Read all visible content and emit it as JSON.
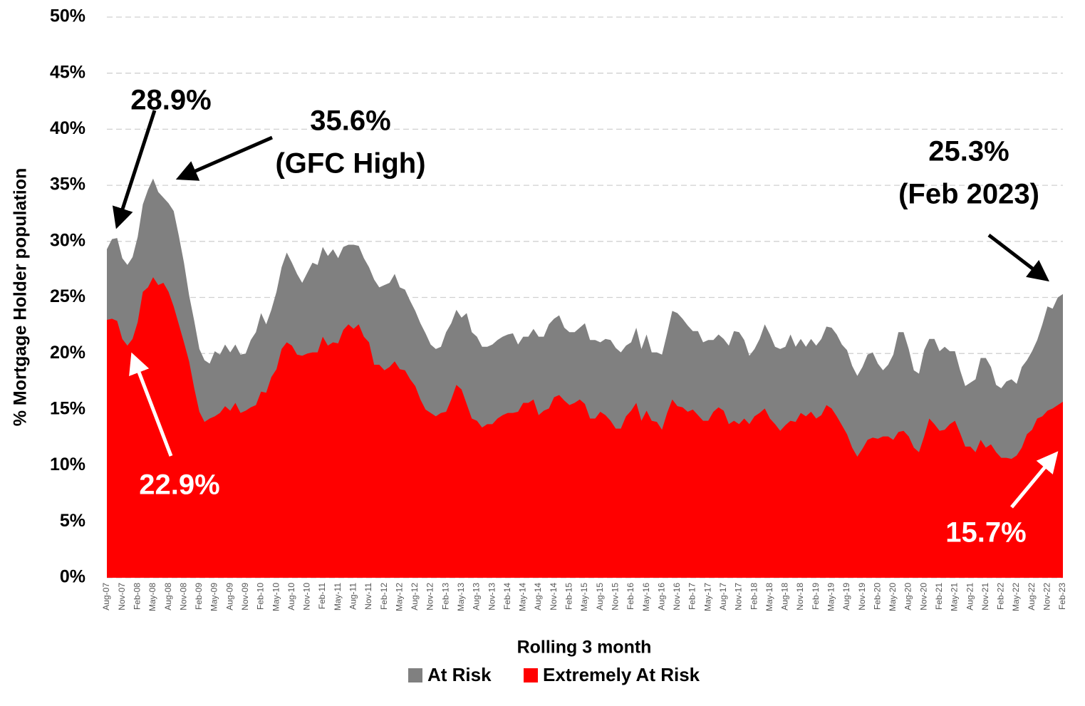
{
  "chart_data": {
    "type": "area",
    "xlabel": "Rolling 3 month",
    "ylabel": "% Mortgage Holder population",
    "ylim": [
      0,
      50
    ],
    "yticks": [
      {
        "value": 0,
        "label": "0%"
      },
      {
        "value": 5,
        "label": "5%"
      },
      {
        "value": 10,
        "label": "10%"
      },
      {
        "value": 15,
        "label": "15%"
      },
      {
        "value": 20,
        "label": "20%"
      },
      {
        "value": 25,
        "label": "25%"
      },
      {
        "value": 30,
        "label": "30%"
      },
      {
        "value": 35,
        "label": "35%"
      },
      {
        "value": 40,
        "label": "40%"
      },
      {
        "value": 45,
        "label": "45%"
      },
      {
        "value": 50,
        "label": "50%"
      }
    ],
    "grid": true,
    "legend": "bottom",
    "categories": [
      "Aug-07",
      null,
      null,
      "Nov-07",
      null,
      null,
      "Feb-08",
      null,
      null,
      "May-08",
      null,
      null,
      "Aug-08",
      null,
      null,
      "Nov-08",
      null,
      null,
      "Feb-09",
      null,
      null,
      "May-09",
      null,
      null,
      "Aug-09",
      null,
      null,
      "Nov-09",
      null,
      null,
      "Feb-10",
      null,
      null,
      "May-10",
      null,
      null,
      "Aug-10",
      null,
      null,
      "Nov-10",
      null,
      null,
      "Feb-11",
      null,
      null,
      "May-11",
      null,
      null,
      "Aug-11",
      null,
      null,
      "Nov-11",
      null,
      null,
      "Feb-12",
      null,
      null,
      "May-12",
      null,
      null,
      "Aug-12",
      null,
      null,
      "Nov-12",
      null,
      null,
      "Feb-13",
      null,
      null,
      "May-13",
      null,
      null,
      "Aug-13",
      null,
      null,
      "Nov-13",
      null,
      null,
      "Feb-14",
      null,
      null,
      "May-14",
      null,
      null,
      "Aug-14",
      null,
      null,
      "Nov-14",
      null,
      null,
      "Feb-15",
      null,
      null,
      "May-15",
      null,
      null,
      "Aug-15",
      null,
      null,
      "Nov-15",
      null,
      null,
      "Feb-16",
      null,
      null,
      "May-16",
      null,
      null,
      "Aug-16",
      null,
      null,
      "Nov-16",
      null,
      null,
      "Feb-17",
      null,
      null,
      "May-17",
      null,
      null,
      "Aug-17",
      null,
      null,
      "Nov-17",
      null,
      null,
      "Feb-18",
      null,
      null,
      "May-18",
      null,
      null,
      "Aug-18",
      null,
      null,
      "Nov-18",
      null,
      null,
      "Feb-19",
      null,
      null,
      "May-19",
      null,
      null,
      "Aug-19",
      null,
      null,
      "Nov-19",
      null,
      null,
      "Feb-20",
      null,
      null,
      "May-20",
      null,
      null,
      "Aug-20",
      null,
      null,
      "Nov-20",
      null,
      null,
      "Feb-21",
      null,
      null,
      "May-21",
      null,
      null,
      "Aug-21",
      null,
      null,
      "Nov-21",
      null,
      null,
      "Feb-22",
      null,
      null,
      "May-22",
      null,
      null,
      "Aug-22",
      null,
      null,
      "Nov-22",
      null,
      null,
      "Feb-23"
    ],
    "series": [
      {
        "name": "At Risk",
        "color": "#808080",
        "values": [
          29.3,
          30.2,
          30.3,
          28.5,
          27.9,
          28.6,
          30.4,
          33.3,
          34.6,
          35.6,
          34.4,
          33.9,
          33.4,
          32.7,
          30.5,
          28.1,
          25.2,
          22.9,
          20.4,
          19.4,
          19.1,
          20.2,
          19.9,
          20.8,
          20.1,
          20.8,
          19.9,
          20.0,
          21.2,
          21.9,
          23.6,
          22.6,
          23.9,
          25.5,
          27.7,
          29.0,
          28.1,
          27.1,
          26.3,
          27.2,
          28.1,
          27.9,
          29.5,
          28.7,
          29.3,
          28.5,
          29.5,
          29.7,
          29.7,
          29.6,
          28.5,
          27.7,
          26.6,
          25.9,
          26.1,
          26.3,
          27.1,
          25.9,
          25.7,
          24.7,
          23.8,
          22.7,
          21.8,
          20.8,
          20.4,
          20.6,
          21.9,
          22.7,
          23.9,
          23.2,
          23.6,
          21.9,
          21.5,
          20.6,
          20.6,
          20.8,
          21.2,
          21.5,
          21.7,
          21.8,
          20.8,
          21.5,
          21.5,
          22.2,
          21.5,
          21.5,
          22.6,
          23.1,
          23.4,
          22.3,
          21.9,
          21.9,
          22.3,
          22.7,
          21.2,
          21.2,
          21.0,
          21.3,
          21.2,
          20.5,
          20.1,
          20.7,
          21.0,
          22.3,
          20.4,
          21.7,
          20.1,
          20.1,
          19.9,
          21.8,
          23.8,
          23.6,
          23.1,
          22.5,
          22.0,
          22.0,
          21.0,
          21.2,
          21.2,
          21.7,
          21.3,
          20.7,
          22.0,
          21.9,
          21.2,
          19.8,
          20.4,
          21.3,
          22.6,
          21.7,
          20.6,
          20.4,
          20.6,
          21.7,
          20.6,
          21.3,
          20.6,
          21.3,
          20.7,
          21.3,
          22.4,
          22.3,
          21.7,
          20.8,
          20.3,
          18.9,
          18.0,
          18.8,
          19.9,
          20.1,
          19.1,
          18.5,
          19.0,
          19.9,
          21.9,
          21.9,
          20.4,
          18.5,
          18.2,
          20.3,
          21.3,
          21.3,
          20.2,
          20.6,
          20.2,
          20.2,
          18.5,
          17.1,
          17.4,
          17.7,
          19.6,
          19.6,
          18.8,
          17.2,
          16.9,
          17.5,
          17.7,
          17.3,
          18.8,
          19.4,
          20.2,
          21.2,
          22.6,
          24.2,
          24.0,
          25.0,
          25.3
        ]
      },
      {
        "name": "Extremely At Risk",
        "color": "#ff0000",
        "values": [
          23.0,
          23.1,
          22.9,
          21.3,
          20.7,
          21.3,
          22.8,
          25.5,
          25.9,
          26.8,
          26.1,
          26.3,
          25.5,
          24.2,
          22.6,
          21.0,
          19.3,
          16.9,
          14.8,
          13.9,
          14.2,
          14.4,
          14.7,
          15.3,
          14.9,
          15.6,
          14.7,
          14.9,
          15.2,
          15.4,
          16.6,
          16.5,
          17.9,
          18.6,
          20.4,
          21.0,
          20.7,
          19.9,
          19.8,
          20.0,
          20.1,
          20.1,
          21.5,
          20.7,
          21.0,
          20.9,
          22.1,
          22.6,
          22.2,
          22.6,
          21.5,
          21.0,
          19.0,
          19.0,
          18.5,
          18.8,
          19.3,
          18.6,
          18.5,
          17.7,
          17.1,
          15.9,
          15.0,
          14.7,
          14.4,
          14.7,
          14.8,
          15.9,
          17.2,
          16.8,
          15.5,
          14.2,
          14.0,
          13.4,
          13.7,
          13.7,
          14.2,
          14.5,
          14.7,
          14.7,
          14.8,
          15.6,
          15.6,
          15.9,
          14.5,
          14.9,
          15.1,
          16.1,
          16.3,
          15.8,
          15.4,
          15.6,
          15.9,
          15.5,
          14.2,
          14.2,
          14.8,
          14.5,
          14.0,
          13.3,
          13.3,
          14.4,
          14.9,
          15.6,
          14.0,
          14.9,
          14.0,
          13.9,
          13.2,
          14.7,
          15.9,
          15.3,
          15.2,
          14.8,
          15.0,
          14.5,
          14.0,
          14.0,
          14.8,
          15.2,
          14.9,
          13.7,
          14.0,
          13.7,
          14.2,
          13.7,
          14.4,
          14.7,
          15.1,
          14.2,
          13.7,
          13.1,
          13.6,
          14.0,
          13.9,
          14.7,
          14.4,
          14.8,
          14.2,
          14.5,
          15.4,
          15.1,
          14.4,
          13.6,
          12.8,
          11.6,
          10.8,
          11.5,
          12.3,
          12.5,
          12.4,
          12.6,
          12.6,
          12.3,
          13.0,
          13.1,
          12.6,
          11.6,
          11.2,
          12.6,
          14.2,
          13.7,
          13.1,
          13.2,
          13.7,
          14.0,
          12.9,
          11.7,
          11.7,
          11.2,
          12.3,
          11.6,
          11.9,
          11.2,
          10.7,
          10.7,
          10.6,
          10.9,
          11.6,
          12.8,
          13.2,
          14.2,
          14.4,
          14.9,
          15.1,
          15.4,
          15.7
        ]
      }
    ],
    "annotations": [
      {
        "lines": [
          "28.9%"
        ],
        "color": "#000000"
      },
      {
        "lines": [
          "35.6%",
          "(GFC High)"
        ],
        "color": "#000000"
      },
      {
        "lines": [
          "25.3%",
          "(Feb 2023)"
        ],
        "color": "#000000"
      },
      {
        "lines": [
          "22.9%"
        ],
        "color": "#ffffff"
      },
      {
        "lines": [
          "15.7%"
        ],
        "color": "#ffffff"
      }
    ]
  }
}
